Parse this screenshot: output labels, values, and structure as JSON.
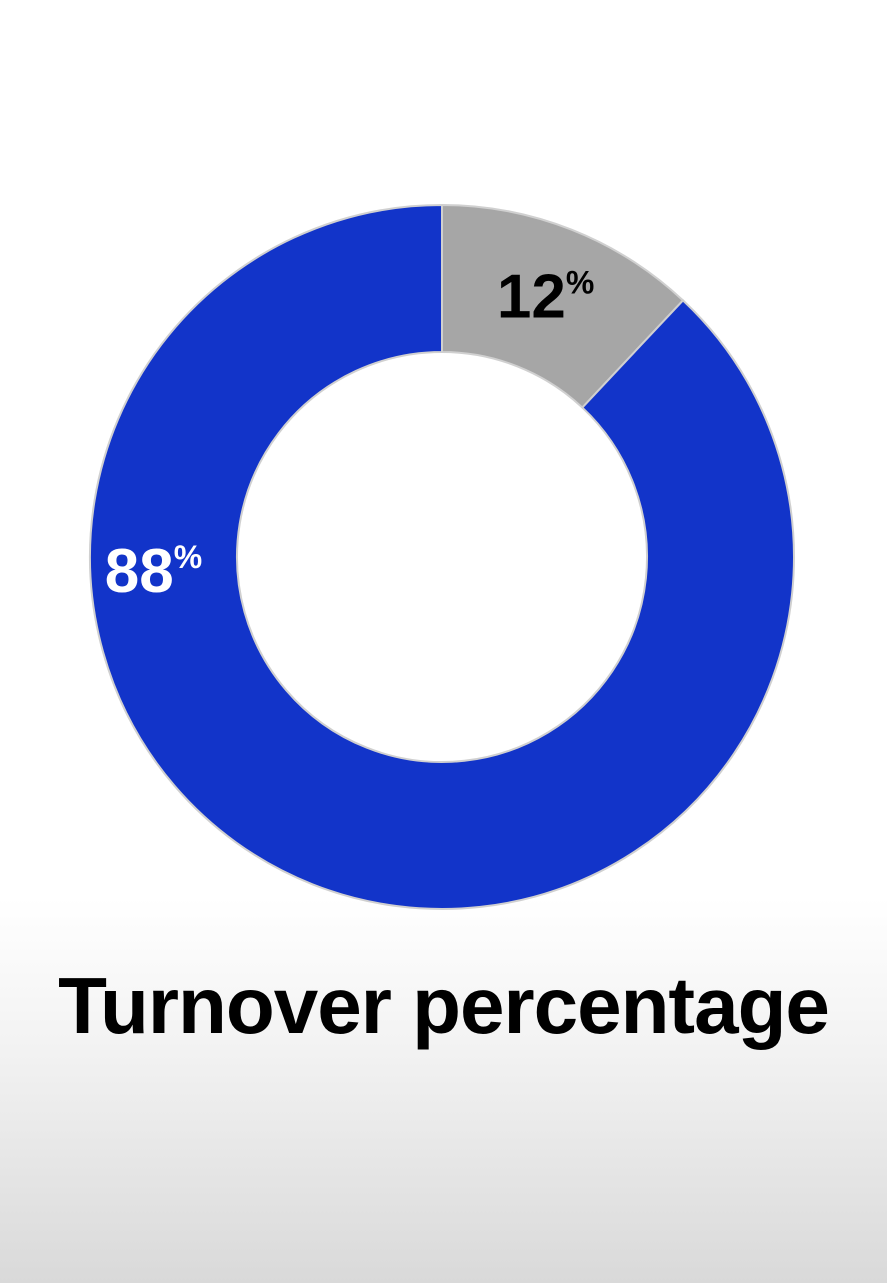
{
  "chart_data": {
    "type": "pie",
    "variant": "donut",
    "title": "Turnover percentage",
    "slices": [
      {
        "value": 12,
        "number": "12",
        "unit": "%",
        "color": "#a6a6a6",
        "label_color": "#000000"
      },
      {
        "value": 88,
        "number": "88",
        "unit": "%",
        "color": "#1234c9",
        "label_color": "#ffffff"
      }
    ],
    "start": "top",
    "direction": "clockwise",
    "legend": "none"
  }
}
